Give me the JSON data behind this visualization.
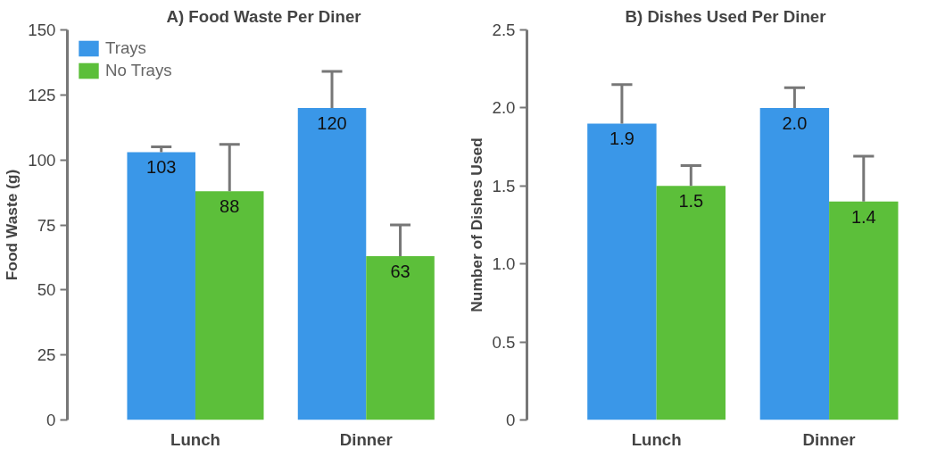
{
  "chart_data": [
    {
      "type": "bar",
      "title": "A) Food Waste Per Diner",
      "ylabel": "Food Waste (g)",
      "categories": [
        "Lunch",
        "Dinner"
      ],
      "series": [
        {
          "name": "Trays",
          "color": "#3a97e8",
          "values": [
            103,
            120
          ],
          "errors": [
            [
              103,
              105
            ],
            [
              120,
              134
            ]
          ]
        },
        {
          "name": "No Trays",
          "color": "#5cbf3a",
          "values": [
            88,
            63
          ],
          "errors": [
            [
              88,
              106
            ],
            [
              63,
              75
            ]
          ]
        }
      ],
      "ylim": [
        0,
        150
      ],
      "yticks": [
        0,
        25,
        50,
        75,
        100,
        125,
        150
      ],
      "data_labels": true,
      "grid": false,
      "legend": "top left"
    },
    {
      "type": "bar",
      "title": "B) Dishes Used Per Diner",
      "ylabel": "Number of Dishes Used",
      "categories": [
        "Lunch",
        "Dinner"
      ],
      "series": [
        {
          "color": "#3a97e8",
          "values": [
            1.9,
            2.0
          ],
          "value_labels": [
            "1.9",
            "2.0"
          ],
          "errors": [
            [
              1.9,
              2.15
            ],
            [
              2.0,
              2.13
            ]
          ]
        },
        {
          "color": "#5cbf3a",
          "values": [
            1.5,
            1.4
          ],
          "value_labels": [
            "1.5",
            "1.4"
          ],
          "errors": [
            [
              1.5,
              1.63
            ],
            [
              1.4,
              1.69
            ]
          ]
        }
      ],
      "ylim": [
        0,
        2.5
      ],
      "yticks": [
        0,
        0.5,
        {
          "value": 1,
          "label": "1.0"
        },
        1.5,
        {
          "value": 2,
          "label": "2.0"
        },
        2.5
      ],
      "grid": false
    }
  ]
}
